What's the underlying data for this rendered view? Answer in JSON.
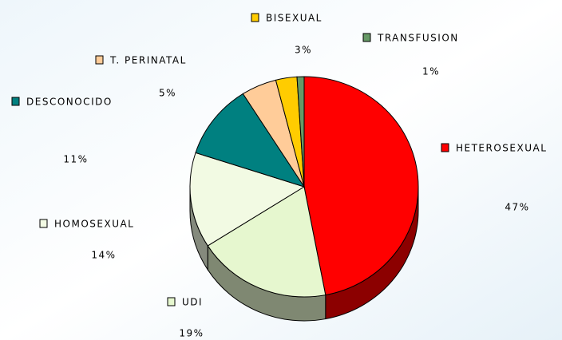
{
  "chart_data": {
    "type": "pie3d",
    "categories": [
      "HETEROSEXUAL",
      "UDI",
      "HOMOSEXUAL",
      "DESCONOCIDO",
      "T. PERINATAL",
      "BISEXUAL",
      "TRANSFUSION"
    ],
    "values": [
      47,
      19,
      14,
      11,
      5,
      3,
      1
    ],
    "value_labels": [
      "47%",
      "19%",
      "14%",
      "11%",
      "5%",
      "3%",
      "1%"
    ],
    "colors": [
      "#ff0000",
      "#e6f7cf",
      "#f2fae3",
      "#008080",
      "#ffcc99",
      "#ffcc00",
      "#669966"
    ]
  }
}
